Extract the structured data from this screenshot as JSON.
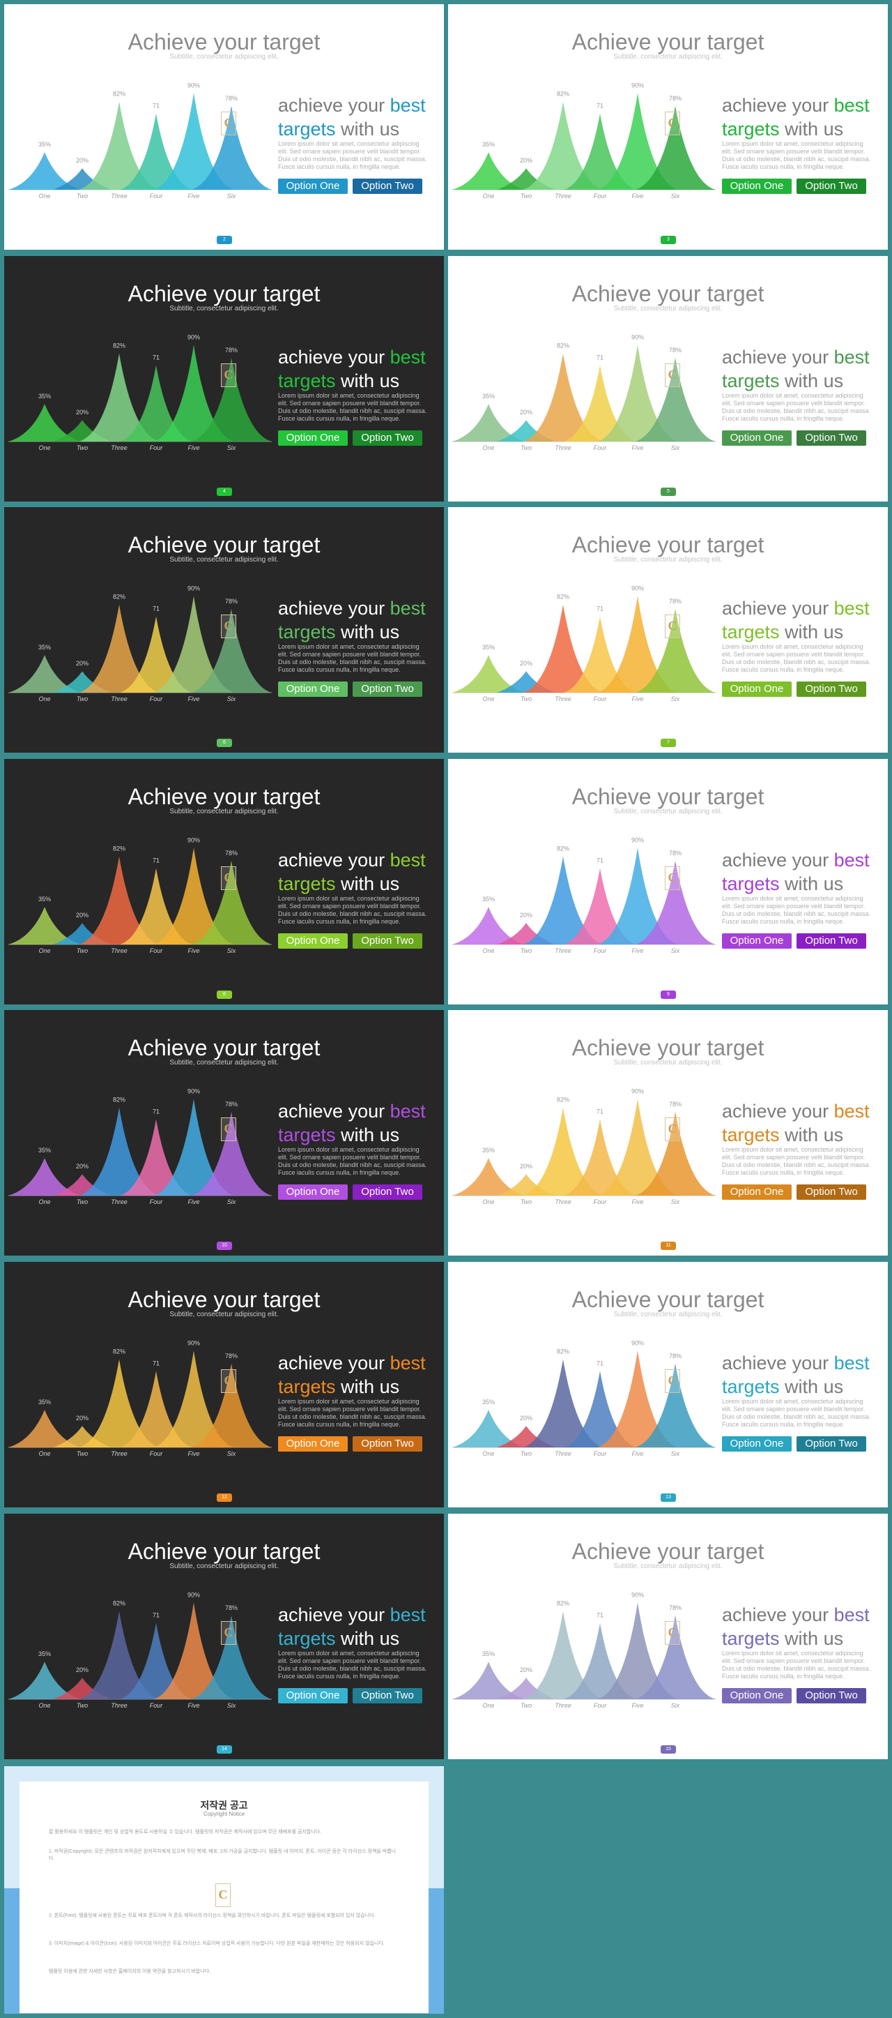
{
  "slide_text": {
    "title": "Achieve your target",
    "subtitle": "Subtitle, consectetur adipiscing elit.",
    "headline_pre": "achieve your ",
    "headline_best": "best",
    "headline_targets": "targets",
    "headline_post": " with us",
    "body": "Lorem ipsum dolor sit amet, consectetur adipiscing elit. Sed ornare sapien posuere velit blandit tempor. Duis ut odio molestie, blandit nibh ac, suscipit massa. Fusce iaculis cursus nulla, in fringilla neque.",
    "option_one": "Option One",
    "option_two": "Option Two",
    "logo_letter": "C"
  },
  "chart_data": {
    "type": "area",
    "categories": [
      "One",
      "Two",
      "Three",
      "Four",
      "Five",
      "Six"
    ],
    "values": [
      35,
      20,
      82,
      71,
      90,
      78
    ],
    "data_labels": [
      "35%",
      "20%",
      "82%",
      "71",
      "90%",
      "78%"
    ]
  },
  "slides": [
    {
      "theme": "light",
      "accent": "#2196c8",
      "option_two_color": "#1a6aa2",
      "page": "2",
      "colors": [
        "#33aadf",
        "#2a8ec4",
        "#7fcf8e",
        "#3bc3a6",
        "#33c0d9",
        "#2b9fd4"
      ]
    },
    {
      "theme": "light",
      "accent": "#22b33a",
      "option_two_color": "#1a8a2a",
      "page": "3",
      "colors": [
        "#3ed14a",
        "#2fae38",
        "#82d88a",
        "#48c65a",
        "#3cd156",
        "#2aa83c"
      ]
    },
    {
      "theme": "dark",
      "accent": "#22c43a",
      "option_two_color": "#1a8a2a",
      "page": "4",
      "colors": [
        "#3ed14a",
        "#2fae38",
        "#82d88a",
        "#48c65a",
        "#3cd156",
        "#2aa83c"
      ]
    },
    {
      "theme": "light",
      "accent": "#4a9a4e",
      "option_two_color": "#3b7d3f",
      "page": "5",
      "colors": [
        "#8ac28c",
        "#3cc3c7",
        "#e9a64a",
        "#f1d04b",
        "#a7cf79",
        "#6aae78"
      ]
    },
    {
      "theme": "dark",
      "accent": "#5fbf62",
      "option_two_color": "#4a9a4e",
      "page": "6",
      "colors": [
        "#8ac28c",
        "#3cc3c7",
        "#e9a64a",
        "#f1d04b",
        "#a7cf79",
        "#6aae78"
      ]
    },
    {
      "theme": "light",
      "accent": "#7fbf2a",
      "option_two_color": "#5f9a1e",
      "page": "7",
      "colors": [
        "#a6d255",
        "#2f9fd6",
        "#f06a43",
        "#f7c64a",
        "#f5b233",
        "#90c43a"
      ]
    },
    {
      "theme": "dark",
      "accent": "#8ccf2e",
      "option_two_color": "#6aa81e",
      "page": "8",
      "colors": [
        "#a6d255",
        "#2f9fd6",
        "#f06a43",
        "#f7c64a",
        "#f5b233",
        "#90c43a"
      ]
    },
    {
      "theme": "light",
      "accent": "#a63fd8",
      "option_two_color": "#8a1fc4",
      "page": "9",
      "colors": [
        "#c26ee8",
        "#e0579f",
        "#3f9ae0",
        "#ef6fae",
        "#43aee6",
        "#b16ae4"
      ]
    },
    {
      "theme": "dark",
      "accent": "#b04fe0",
      "option_two_color": "#8a1fc4",
      "page": "10",
      "colors": [
        "#c26ee8",
        "#e0579f",
        "#3f9ae0",
        "#ef6fae",
        "#43aee6",
        "#b16ae4"
      ]
    },
    {
      "theme": "light",
      "accent": "#d9881e",
      "option_two_color": "#b06a14",
      "page": "11",
      "colors": [
        "#efa14a",
        "#f3c24e",
        "#f6c743",
        "#f3b84a",
        "#f3c047",
        "#e9962e"
      ]
    },
    {
      "theme": "dark",
      "accent": "#f08a1e",
      "option_two_color": "#c86a14",
      "page": "12",
      "colors": [
        "#efa14a",
        "#f3c24e",
        "#f6c743",
        "#f3b84a",
        "#f3c047",
        "#e9962e"
      ]
    },
    {
      "theme": "light",
      "accent": "#2aa6c2",
      "option_two_color": "#1f7f95",
      "page": "13",
      "colors": [
        "#57b7cf",
        "#d94b5a",
        "#5b67a0",
        "#4e7fbf",
        "#ef8b4a",
        "#3a9cbf"
      ]
    },
    {
      "theme": "dark",
      "accent": "#35b3d1",
      "option_two_color": "#1f7f95",
      "page": "14",
      "colors": [
        "#57b7cf",
        "#d94b5a",
        "#5b67a0",
        "#4e7fbf",
        "#ef8b4a",
        "#3a9cbf"
      ]
    },
    {
      "theme": "light",
      "accent": "#7a6ab8",
      "option_two_color": "#5a4ca0",
      "page": "15",
      "colors": [
        "#a09ad0",
        "#b29ad6",
        "#a5c0c8",
        "#8fa8c4",
        "#8e95b8",
        "#8a8fc8"
      ]
    }
  ],
  "copyright": {
    "title": "저작권 공고",
    "subtitle": "Copyright Notice",
    "p1": "잘 활용하세요 이 템플릿은 개인 및 상업적 용도로 사용하실 수 있습니다. 템플릿의 저작권은 제작사에 있으며 무단 재배포를 금지합니다.",
    "p2": "1. 저작권(Copyright): 모든 콘텐츠의 저작권은 원저작자에게 있으며 무단 복제, 배포, 2차 가공을 금지합니다. 템플릿 내 이미지, 폰트, 아이콘 등은 각 라이선스 정책을 따릅니다.",
    "p3": "2. 폰트(Font): 템플릿에 사용된 폰트는 무료 배포 폰트이며 각 폰트 제작사의 라이선스 정책을 확인하시기 바랍니다. 폰트 파일은 템플릿에 포함되어 있지 않습니다.",
    "p4": "3. 이미지(Image) & 아이콘(Icon): 사용된 이미지와 아이콘은 무료 라이선스 자료이며 상업적 사용이 가능합니다. 다만 원본 파일을 재판매하는 것은 허용되지 않습니다.",
    "p5": "템플릿 이용에 관한 자세한 사항은 홈페이지의 이용 약관을 참고하시기 바랍니다.",
    "logo_letter": "C"
  }
}
